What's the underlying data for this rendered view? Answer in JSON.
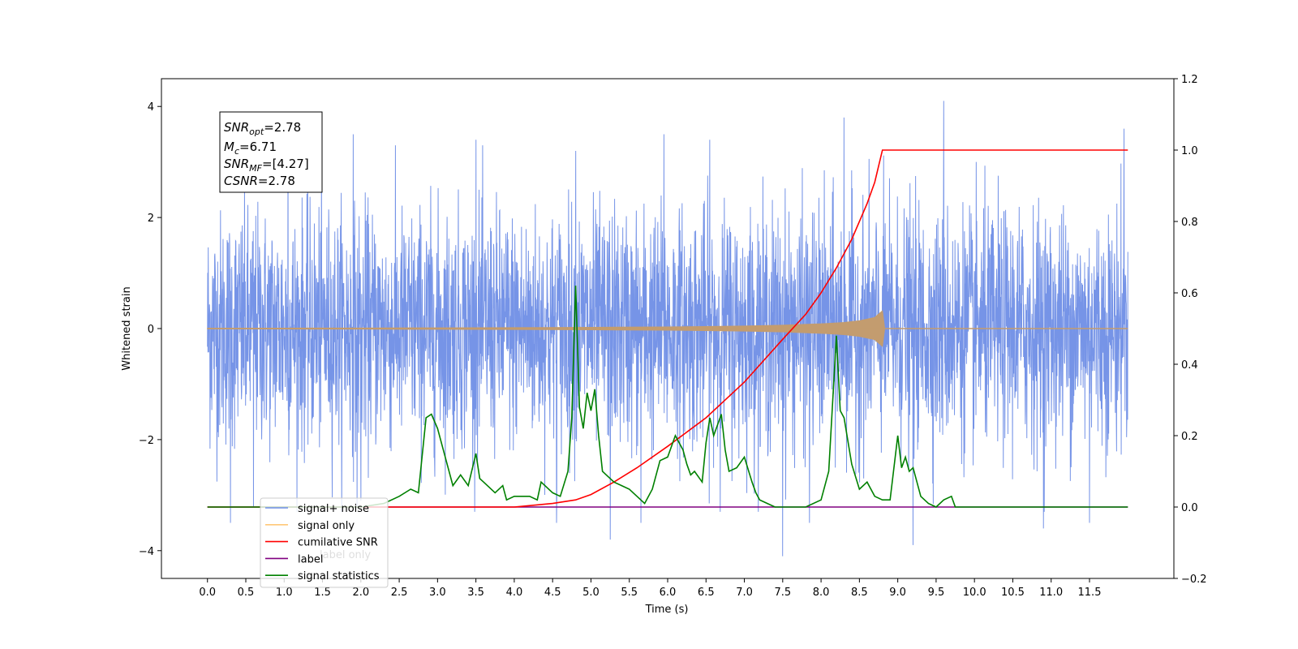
{
  "chart_data": {
    "type": "line",
    "title": "",
    "xlabel": "Time (s)",
    "ylabel": "Whitened strain",
    "xlim": [
      -0.6,
      12.6
    ],
    "ylim": [
      -4.5,
      4.5
    ],
    "y2lim": [
      -0.2,
      1.2
    ],
    "grid": false,
    "legend_position": "lower-left",
    "x_ticks": [
      "0.0",
      "0.5",
      "1.0",
      "1.5",
      "2.0",
      "2.5",
      "3.0",
      "3.5",
      "4.0",
      "4.5",
      "5.0",
      "5.5",
      "6.0",
      "6.5",
      "7.0",
      "7.5",
      "8.0",
      "8.5",
      "9.0",
      "9.5",
      "10.0",
      "10.5",
      "11.0",
      "11.5"
    ],
    "y_ticks": [
      "4",
      "2",
      "0",
      "−2",
      "−4"
    ],
    "y2_ticks": [
      "1.2",
      "1.0",
      "0.8",
      "0.6",
      "0.4",
      "0.2",
      "0.0",
      "−0.2"
    ],
    "annotation": {
      "snr_opt": "=2.78",
      "mc": "=6.71",
      "snr_mf": "=[4.27]",
      "csnr": "=2.78"
    },
    "series": [
      {
        "name": "signal+ noise",
        "color": "#6f8ee6",
        "axis": "left",
        "description_of_shape": "noise band",
        "x_range": [
          0.0,
          12.0
        ],
        "envelope": [
          -2.2,
          2.2
        ],
        "peaks": [
          {
            "x": 0.3,
            "y": -3.5
          },
          {
            "x": 0.6,
            "y": -3.2
          },
          {
            "x": 1.05,
            "y": 3.3
          },
          {
            "x": 1.9,
            "y": 3.5
          },
          {
            "x": 1.95,
            "y": -3.2
          },
          {
            "x": 2.0,
            "y": -3.1
          },
          {
            "x": 3.5,
            "y": 3.4
          },
          {
            "x": 4.55,
            "y": -3.5
          },
          {
            "x": 4.8,
            "y": 3.2
          },
          {
            "x": 5.25,
            "y": -3.8
          },
          {
            "x": 5.65,
            "y": -3.5
          },
          {
            "x": 5.95,
            "y": 3.5
          },
          {
            "x": 6.55,
            "y": 3.4
          },
          {
            "x": 7.5,
            "y": -4.1
          },
          {
            "x": 7.85,
            "y": -3.5
          },
          {
            "x": 8.3,
            "y": 3.8
          },
          {
            "x": 9.2,
            "y": -3.9
          },
          {
            "x": 9.6,
            "y": 4.1
          },
          {
            "x": 10.9,
            "y": -3.6
          },
          {
            "x": 11.5,
            "y": -3.5
          },
          {
            "x": 11.95,
            "y": 3.6
          }
        ]
      },
      {
        "name": "signal only",
        "color": "#c39c6f",
        "axis": "left",
        "x": [
          0.0,
          1.0,
          2.0,
          3.0,
          4.0,
          5.0,
          6.0,
          7.0,
          7.5,
          8.0,
          8.3,
          8.5,
          8.7,
          8.8,
          8.83,
          12.0
        ],
        "amplitude": [
          0.005,
          0.008,
          0.01,
          0.013,
          0.017,
          0.022,
          0.03,
          0.045,
          0.06,
          0.085,
          0.11,
          0.14,
          0.2,
          0.32,
          0.0,
          0.0
        ]
      },
      {
        "name": "cumilative SNR",
        "color": "#ff0000",
        "axis": "right",
        "x": [
          0.0,
          4.0,
          4.5,
          4.8,
          5.0,
          5.3,
          5.6,
          6.0,
          6.5,
          7.0,
          7.5,
          7.8,
          8.0,
          8.2,
          8.4,
          8.6,
          8.7,
          8.8,
          12.0
        ],
        "values": [
          0.0,
          0.0,
          0.01,
          0.02,
          0.035,
          0.07,
          0.11,
          0.17,
          0.25,
          0.35,
          0.47,
          0.54,
          0.6,
          0.67,
          0.75,
          0.85,
          0.91,
          1.0,
          1.0
        ]
      },
      {
        "name": "label",
        "color": "#800080",
        "axis": "right",
        "x": [
          0.0,
          12.0
        ],
        "values": [
          0.0,
          0.0
        ]
      },
      {
        "name": "signal statistics",
        "color": "#008000",
        "axis": "right",
        "x": [
          0.0,
          1.0,
          2.0,
          2.3,
          2.5,
          2.65,
          2.75,
          2.85,
          2.92,
          3.0,
          3.1,
          3.2,
          3.3,
          3.4,
          3.5,
          3.55,
          3.6,
          3.75,
          3.85,
          3.9,
          4.0,
          4.2,
          4.3,
          4.35,
          4.5,
          4.6,
          4.7,
          4.75,
          4.8,
          4.85,
          4.9,
          4.95,
          5.0,
          5.05,
          5.1,
          5.15,
          5.2,
          5.3,
          5.4,
          5.5,
          5.6,
          5.7,
          5.8,
          5.9,
          6.0,
          6.1,
          6.2,
          6.25,
          6.3,
          6.35,
          6.45,
          6.5,
          6.55,
          6.6,
          6.7,
          6.75,
          6.8,
          6.9,
          7.0,
          7.1,
          7.15,
          7.2,
          7.3,
          7.4,
          7.5,
          7.8,
          8.0,
          8.1,
          8.2,
          8.25,
          8.3,
          8.4,
          8.5,
          8.6,
          8.7,
          8.8,
          8.9,
          9.0,
          9.05,
          9.1,
          9.15,
          9.2,
          9.3,
          9.4,
          9.5,
          9.6,
          9.7,
          9.75,
          9.8,
          9.9,
          10.0,
          12.0
        ],
        "values": [
          0.0,
          0.0,
          0.0,
          0.01,
          0.03,
          0.05,
          0.04,
          0.25,
          0.26,
          0.22,
          0.14,
          0.06,
          0.09,
          0.06,
          0.15,
          0.08,
          0.07,
          0.04,
          0.06,
          0.02,
          0.03,
          0.03,
          0.02,
          0.07,
          0.04,
          0.03,
          0.1,
          0.25,
          0.62,
          0.28,
          0.22,
          0.32,
          0.27,
          0.33,
          0.2,
          0.1,
          0.09,
          0.07,
          0.06,
          0.05,
          0.03,
          0.01,
          0.05,
          0.13,
          0.14,
          0.2,
          0.16,
          0.12,
          0.09,
          0.1,
          0.07,
          0.18,
          0.25,
          0.2,
          0.26,
          0.16,
          0.1,
          0.11,
          0.14,
          0.07,
          0.04,
          0.02,
          0.01,
          0.0,
          0.0,
          0.0,
          0.02,
          0.1,
          0.48,
          0.27,
          0.25,
          0.12,
          0.05,
          0.07,
          0.03,
          0.02,
          0.02,
          0.2,
          0.11,
          0.14,
          0.1,
          0.11,
          0.03,
          0.01,
          0.0,
          0.02,
          0.03,
          0.0,
          0.0,
          0.0,
          0.0,
          0.0
        ]
      }
    ],
    "legend": [
      {
        "label": "signal+ noise",
        "color": "#6f8ee6"
      },
      {
        "label": "signal only",
        "color": "#ffc878"
      },
      {
        "label": "cumilative SNR",
        "color": "#ff0000"
      },
      {
        "label": "label",
        "color": "#800080"
      },
      {
        "label": "signal statistics",
        "color": "#008000"
      }
    ],
    "legend_hidden_text": [
      "label only"
    ]
  }
}
